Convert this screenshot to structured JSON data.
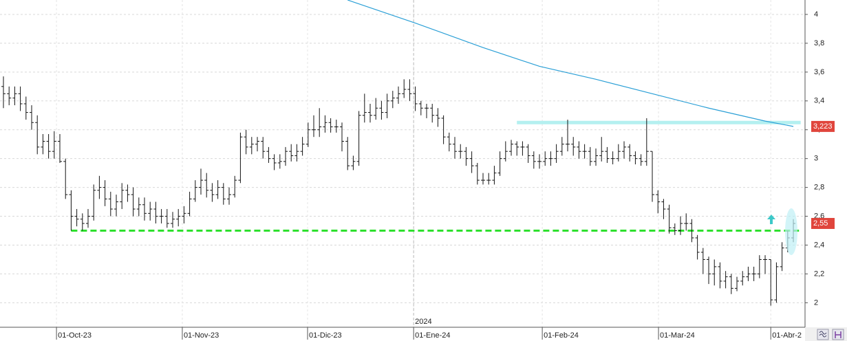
{
  "chart_data": {
    "type": "ohlc",
    "ohlc": {
      "open": [
        3.5,
        3.45,
        3.42,
        3.45,
        3.38,
        3.32,
        3.25,
        3.08,
        3.12,
        3.05,
        3.12,
        2.98,
        2.75,
        2.6,
        2.58,
        2.55,
        2.6,
        2.78,
        2.8,
        2.72,
        2.65,
        2.7,
        2.78,
        2.75,
        2.65,
        2.68,
        2.62,
        2.65,
        2.6,
        2.6,
        2.55,
        2.58,
        2.6,
        2.62,
        2.72,
        2.8,
        2.85,
        2.78,
        2.75,
        2.8,
        2.72,
        2.75,
        2.85,
        3.15,
        3.08,
        3.1,
        3.12,
        3.05,
        3.0,
        2.97,
        2.98,
        3.05,
        3.02,
        3.05,
        3.1,
        3.2,
        3.2,
        3.22,
        3.25,
        3.22,
        3.22,
        3.12,
        2.95,
        2.98,
        3.3,
        3.32,
        3.3,
        3.35,
        3.32,
        3.4,
        3.42,
        3.45,
        3.48,
        3.45,
        3.38,
        3.35,
        3.35,
        3.3,
        3.28,
        3.15,
        3.1,
        3.05,
        3.05,
        3.0,
        2.95,
        2.85,
        2.85,
        2.85,
        2.9,
        3.0,
        3.05,
        3.1,
        3.08,
        3.08,
        3.02,
        2.98,
        2.98,
        3.0,
        3.0,
        3.05,
        3.1,
        3.1,
        3.08,
        3.05,
        3.05,
        2.98,
        3.02,
        3.05,
        3.0,
        3.0,
        3.05,
        3.08,
        3.02,
        3.0,
        2.98,
        3.05,
        2.75,
        2.7,
        2.65,
        2.52,
        2.5,
        2.55,
        2.55,
        2.45,
        2.35,
        2.3,
        2.2,
        2.25,
        2.15,
        2.18,
        2.1,
        2.15,
        2.18,
        2.2,
        2.2,
        2.3,
        2.3,
        2.02,
        2.25,
        2.38,
        2.45
      ],
      "high": [
        3.57,
        3.5,
        3.5,
        3.5,
        3.43,
        3.37,
        3.3,
        3.17,
        3.17,
        3.19,
        3.17,
        3.0,
        2.78,
        2.65,
        2.62,
        2.65,
        2.82,
        2.88,
        2.85,
        2.77,
        2.75,
        2.83,
        2.82,
        2.8,
        2.73,
        2.73,
        2.7,
        2.7,
        2.65,
        2.65,
        2.63,
        2.65,
        2.67,
        2.77,
        2.85,
        2.93,
        2.9,
        2.83,
        2.85,
        2.83,
        2.8,
        2.88,
        3.18,
        3.2,
        3.15,
        3.15,
        3.15,
        3.08,
        3.03,
        3.03,
        3.08,
        3.1,
        3.1,
        3.15,
        3.25,
        3.3,
        3.35,
        3.3,
        3.28,
        3.27,
        3.25,
        3.15,
        3.02,
        3.33,
        3.45,
        3.38,
        3.42,
        3.4,
        3.45,
        3.47,
        3.5,
        3.55,
        3.55,
        3.5,
        3.4,
        3.38,
        3.38,
        3.35,
        3.3,
        3.18,
        3.15,
        3.1,
        3.08,
        3.05,
        2.97,
        2.9,
        2.9,
        2.95,
        3.05,
        3.12,
        3.13,
        3.12,
        3.12,
        3.1,
        3.05,
        3.03,
        3.05,
        3.05,
        3.1,
        3.15,
        3.27,
        3.15,
        3.12,
        3.1,
        3.08,
        3.07,
        3.15,
        3.08,
        3.05,
        3.1,
        3.12,
        3.1,
        3.05,
        3.03,
        3.28,
        3.05,
        2.78,
        2.72,
        2.68,
        2.55,
        2.6,
        2.62,
        2.58,
        2.47,
        2.38,
        2.32,
        2.3,
        2.28,
        2.22,
        2.2,
        2.18,
        2.22,
        2.25,
        2.25,
        2.33,
        2.33,
        2.3,
        2.28,
        2.42,
        2.5,
        2.58
      ],
      "low": [
        3.35,
        3.37,
        3.37,
        3.33,
        3.27,
        3.2,
        3.03,
        3.03,
        3.0,
        3.0,
        2.97,
        2.72,
        2.5,
        2.53,
        2.5,
        2.52,
        2.57,
        2.72,
        2.67,
        2.6,
        2.6,
        2.65,
        2.7,
        2.6,
        2.6,
        2.57,
        2.57,
        2.55,
        2.55,
        2.52,
        2.52,
        2.53,
        2.55,
        2.6,
        2.7,
        2.75,
        2.73,
        2.7,
        2.72,
        2.68,
        2.68,
        2.73,
        2.83,
        3.03,
        3.03,
        3.05,
        3.0,
        2.97,
        2.92,
        2.93,
        2.95,
        2.98,
        2.98,
        3.02,
        3.08,
        3.15,
        3.15,
        3.18,
        3.18,
        3.18,
        3.05,
        2.92,
        2.92,
        2.95,
        3.25,
        3.25,
        3.27,
        3.27,
        3.28,
        3.35,
        3.38,
        3.42,
        3.4,
        3.33,
        3.3,
        3.28,
        3.25,
        3.22,
        3.1,
        3.05,
        3.0,
        3.0,
        2.95,
        2.9,
        2.82,
        2.82,
        2.82,
        2.82,
        2.88,
        2.98,
        3.02,
        3.02,
        3.02,
        2.97,
        2.93,
        2.93,
        2.95,
        2.95,
        2.97,
        3.02,
        3.05,
        3.02,
        3.0,
        3.0,
        2.95,
        2.95,
        2.98,
        2.97,
        2.96,
        2.98,
        3.0,
        2.98,
        2.96,
        2.95,
        2.95,
        2.7,
        2.62,
        2.58,
        2.48,
        2.47,
        2.47,
        2.5,
        2.42,
        2.3,
        2.2,
        2.13,
        2.12,
        2.1,
        2.1,
        2.06,
        2.08,
        2.12,
        2.15,
        2.15,
        2.17,
        2.2,
        1.98,
        2.0,
        2.22,
        2.35,
        2.42
      ],
      "close": [
        3.45,
        3.42,
        3.45,
        3.38,
        3.32,
        3.25,
        3.08,
        3.12,
        3.05,
        3.12,
        2.98,
        2.75,
        2.6,
        2.58,
        2.55,
        2.6,
        2.78,
        2.8,
        2.72,
        2.65,
        2.7,
        2.78,
        2.75,
        2.65,
        2.68,
        2.62,
        2.65,
        2.6,
        2.6,
        2.55,
        2.58,
        2.6,
        2.62,
        2.72,
        2.8,
        2.85,
        2.78,
        2.75,
        2.8,
        2.72,
        2.75,
        2.85,
        3.15,
        3.08,
        3.1,
        3.12,
        3.05,
        3.0,
        2.97,
        2.98,
        3.05,
        3.02,
        3.05,
        3.1,
        3.2,
        3.2,
        3.22,
        3.25,
        3.22,
        3.22,
        3.12,
        2.95,
        2.98,
        3.3,
        3.32,
        3.3,
        3.35,
        3.32,
        3.4,
        3.42,
        3.45,
        3.48,
        3.45,
        3.38,
        3.35,
        3.35,
        3.3,
        3.28,
        3.15,
        3.1,
        3.05,
        3.05,
        3.0,
        2.95,
        2.85,
        2.85,
        2.85,
        2.9,
        3.0,
        3.05,
        3.1,
        3.08,
        3.08,
        3.02,
        2.98,
        2.98,
        3.0,
        3.0,
        3.05,
        3.1,
        3.1,
        3.08,
        3.05,
        3.05,
        2.98,
        3.02,
        3.05,
        3.0,
        3.0,
        3.05,
        3.08,
        3.02,
        3.0,
        2.98,
        3.05,
        2.75,
        2.7,
        2.65,
        2.52,
        2.5,
        2.55,
        2.55,
        2.45,
        2.35,
        2.3,
        2.2,
        2.25,
        2.15,
        2.18,
        2.1,
        2.15,
        2.18,
        2.2,
        2.2,
        2.3,
        2.3,
        2.02,
        2.25,
        2.38,
        2.45,
        2.55
      ],
      "color": "#111111"
    },
    "ma": {
      "x": [
        61,
        73,
        85,
        95,
        105,
        115,
        125,
        135,
        140
      ],
      "values": [
        4.1,
        3.94,
        3.77,
        3.64,
        3.55,
        3.45,
        3.35,
        3.26,
        3.223
      ],
      "color": "#2a9fd6"
    },
    "hlines": [
      {
        "value": 2.5,
        "x": [
          12,
          141
        ],
        "color": "#2ee02e",
        "style": "dashed"
      },
      {
        "value": 3.25,
        "x": [
          91,
          141.3
        ],
        "color": "#b4f0f0",
        "style": "thick"
      }
    ],
    "price_labels": [
      {
        "value": 3.223,
        "label": "3,223",
        "color": "#e0453c"
      },
      {
        "value": 2.55,
        "label": "2,55",
        "color": "#e0453c"
      }
    ],
    "annotations": [
      {
        "text": "2024",
        "x": 72.7
      }
    ],
    "xlim": [
      -0.61,
      142.07
    ],
    "ylim": [
      1.83,
      4.1
    ],
    "xticks": [
      {
        "value": 9.4,
        "label": "01-Oct-23"
      },
      {
        "value": 31.7,
        "label": "01-Nov-23"
      },
      {
        "value": 53.9,
        "label": "01-Dic-23"
      },
      {
        "value": 72.7,
        "label": "01-Ene-24"
      },
      {
        "value": 95.5,
        "label": "01-Feb-24"
      },
      {
        "value": 116.1,
        "label": "01-Mar-24"
      },
      {
        "value": 136,
        "label": "01-Abr-2"
      }
    ],
    "yticks": [
      2,
      {
        "value": 2.2,
        "label": "2,2"
      },
      {
        "value": 2.4,
        "label": "2,4"
      },
      {
        "value": 2.6,
        "label": "2,6"
      },
      {
        "value": 2.8,
        "label": "2,8"
      },
      3,
      {
        "value": 3.2,
        "label": "3,2"
      },
      {
        "value": 3.4,
        "label": "3,4"
      },
      {
        "value": 3.6,
        "label": "3,6"
      },
      {
        "value": 3.8,
        "label": "3,8"
      },
      4
    ],
    "grid": true
  }
}
